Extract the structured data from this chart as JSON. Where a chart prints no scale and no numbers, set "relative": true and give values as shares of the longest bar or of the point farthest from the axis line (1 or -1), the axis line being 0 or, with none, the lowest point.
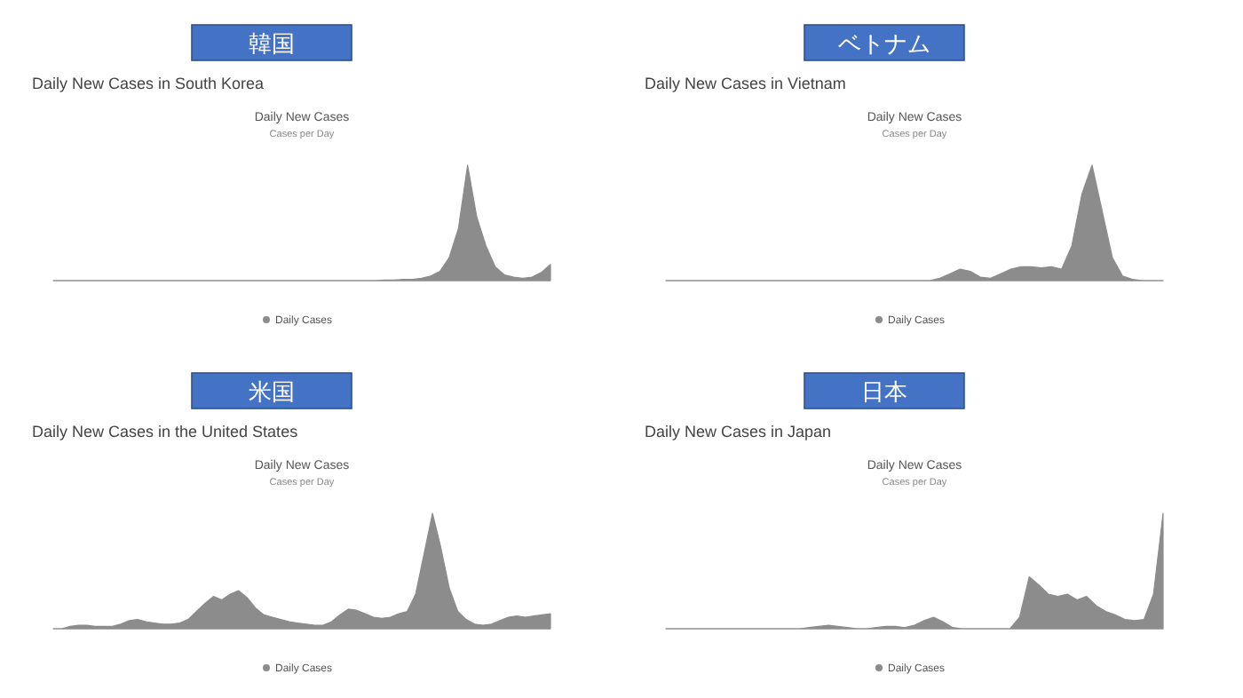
{
  "chart_data": [
    {
      "type": "area",
      "title": "韓国",
      "subtitle": "Daily New Cases in South Korea",
      "annotations": [
        "Daily New Cases",
        "Cases per Day"
      ],
      "relative": true,
      "legend": "bottom",
      "categories": [
        null,
        null,
        null,
        null,
        null,
        null,
        null,
        null,
        null,
        null,
        null,
        null,
        null,
        null,
        null,
        null,
        null,
        null,
        null,
        null,
        null,
        null,
        null,
        null,
        null,
        null,
        null,
        null,
        null,
        null,
        null,
        null,
        null,
        null,
        null,
        null,
        null,
        null,
        null,
        null,
        null,
        null,
        null,
        null,
        null,
        null,
        null,
        null,
        null,
        null,
        null,
        null,
        null,
        null,
        null
      ],
      "series": [
        {
          "name": "Daily Cases",
          "color": "#8c8c8c",
          "values": [
            0,
            0,
            0,
            0,
            0,
            0,
            0,
            0,
            0,
            0,
            0,
            0,
            0,
            0,
            0,
            0,
            0,
            0,
            0,
            0,
            0,
            0,
            0,
            0,
            0,
            0,
            0,
            0,
            0,
            0,
            0,
            0,
            0,
            0,
            0,
            0,
            0.005,
            0.005,
            0.01,
            0.01,
            0.02,
            0.04,
            0.08,
            0.2,
            0.45,
            1.0,
            0.55,
            0.3,
            0.12,
            0.05,
            0.03,
            0.02,
            0.03,
            0.07,
            0.14
          ]
        }
      ]
    },
    {
      "type": "area",
      "title": "ベトナム",
      "subtitle": "Daily New Cases in Vietnam",
      "annotations": [
        "Daily New Cases",
        "Cases per Day"
      ],
      "relative": true,
      "legend": "bottom",
      "categories": [
        null,
        null,
        null,
        null,
        null,
        null,
        null,
        null,
        null,
        null,
        null,
        null,
        null,
        null,
        null,
        null,
        null,
        null,
        null,
        null,
        null,
        null,
        null,
        null,
        null,
        null,
        null,
        null,
        null,
        null,
        null,
        null,
        null,
        null,
        null,
        null,
        null,
        null,
        null,
        null,
        null,
        null,
        null,
        null,
        null,
        null,
        null,
        null,
        null,
        null
      ],
      "series": [
        {
          "name": "Daily Cases",
          "color": "#8c8c8c",
          "values": [
            0,
            0,
            0,
            0,
            0,
            0,
            0,
            0,
            0,
            0,
            0,
            0,
            0,
            0,
            0,
            0,
            0,
            0,
            0,
            0,
            0,
            0,
            0,
            0,
            0,
            0,
            0,
            0.02,
            0.06,
            0.1,
            0.08,
            0.03,
            0.02,
            0.06,
            0.1,
            0.12,
            0.12,
            0.11,
            0.12,
            0.1,
            0.3,
            0.75,
            1.0,
            0.6,
            0.2,
            0.04,
            0.01,
            0,
            0,
            0
          ]
        }
      ]
    },
    {
      "type": "area",
      "title": "米国",
      "subtitle": "Daily New Cases in the United States",
      "annotations": [
        "Daily New Cases",
        "Cases per Day"
      ],
      "relative": true,
      "legend": "bottom",
      "categories": [
        null,
        null,
        null,
        null,
        null,
        null,
        null,
        null,
        null,
        null,
        null,
        null,
        null,
        null,
        null,
        null,
        null,
        null,
        null,
        null,
        null,
        null,
        null,
        null,
        null,
        null,
        null,
        null,
        null,
        null,
        null,
        null,
        null,
        null,
        null,
        null,
        null,
        null,
        null,
        null,
        null,
        null,
        null,
        null,
        null,
        null,
        null,
        null,
        null,
        null,
        null,
        null,
        null,
        null,
        null,
        null,
        null,
        null,
        null,
        null
      ],
      "series": [
        {
          "name": "Daily Cases",
          "color": "#8c8c8c",
          "values": [
            0,
            0,
            0.02,
            0.03,
            0.03,
            0.02,
            0.02,
            0.02,
            0.04,
            0.07,
            0.08,
            0.06,
            0.05,
            0.04,
            0.04,
            0.05,
            0.08,
            0.15,
            0.22,
            0.28,
            0.25,
            0.3,
            0.33,
            0.27,
            0.18,
            0.12,
            0.1,
            0.08,
            0.06,
            0.05,
            0.04,
            0.03,
            0.03,
            0.06,
            0.12,
            0.17,
            0.16,
            0.13,
            0.1,
            0.09,
            0.1,
            0.13,
            0.15,
            0.3,
            0.65,
            1.0,
            0.7,
            0.35,
            0.15,
            0.08,
            0.04,
            0.03,
            0.04,
            0.07,
            0.1,
            0.11,
            0.1,
            0.11,
            0.12,
            0.13
          ]
        }
      ]
    },
    {
      "type": "area",
      "title": "日本",
      "subtitle": "Daily New Cases in Japan",
      "annotations": [
        "Daily New Cases",
        "Cases per Day"
      ],
      "relative": true,
      "legend": "bottom",
      "categories": [
        null,
        null,
        null,
        null,
        null,
        null,
        null,
        null,
        null,
        null,
        null,
        null,
        null,
        null,
        null,
        null,
        null,
        null,
        null,
        null,
        null,
        null,
        null,
        null,
        null,
        null,
        null,
        null,
        null,
        null,
        null,
        null,
        null,
        null,
        null,
        null,
        null,
        null,
        null,
        null,
        null,
        null,
        null,
        null,
        null,
        null,
        null,
        null,
        null,
        null,
        null,
        null,
        null
      ],
      "series": [
        {
          "name": "Daily Cases",
          "color": "#8c8c8c",
          "values": [
            0,
            0,
            0,
            0,
            0,
            0,
            0,
            0,
            0,
            0,
            0,
            0,
            0,
            0,
            0,
            0.01,
            0.02,
            0.03,
            0.02,
            0.01,
            0,
            0,
            0.01,
            0.02,
            0.02,
            0.01,
            0.03,
            0.07,
            0.1,
            0.06,
            0.01,
            0,
            0,
            0,
            0,
            0,
            0,
            0.1,
            0.45,
            0.38,
            0.3,
            0.28,
            0.3,
            0.25,
            0.28,
            0.2,
            0.15,
            0.12,
            0.08,
            0.07,
            0.08,
            0.3,
            1.0
          ]
        }
      ]
    }
  ]
}
